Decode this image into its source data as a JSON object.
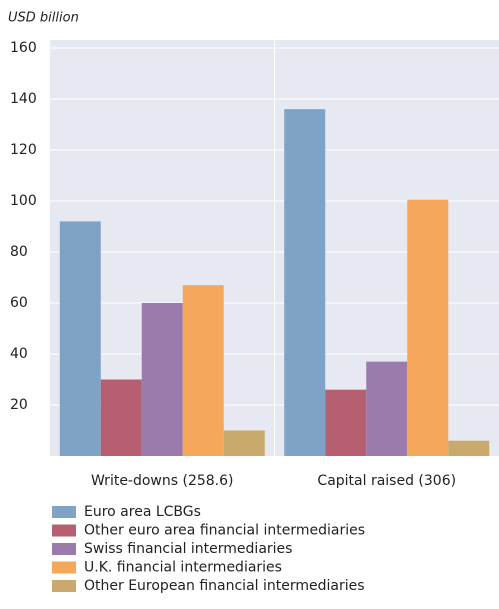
{
  "chart_data": {
    "type": "bar",
    "y_label": "USD billion",
    "categories": [
      "Write-downs (258.6)",
      "Capital raised (306)"
    ],
    "series": [
      {
        "name": "Euro area LCBGs",
        "color": "#7fa3c7",
        "values": [
          92,
          136
        ]
      },
      {
        "name": "Other euro area financial intermediaries",
        "color": "#b55f70",
        "values": [
          30,
          26
        ]
      },
      {
        "name": "Swiss financial intermediaries",
        "color": "#9b7bab",
        "values": [
          60,
          37
        ]
      },
      {
        "name": "U.K. financial intermediaries",
        "color": "#f5a75c",
        "values": [
          67,
          100.5
        ]
      },
      {
        "name": "Other European financial intermediaries",
        "color": "#c9aa6c",
        "values": [
          10,
          6
        ]
      }
    ],
    "ylim": [
      0,
      160
    ],
    "yticks": [
      20,
      40,
      60,
      80,
      100,
      120,
      140,
      160
    ],
    "grid": true
  }
}
